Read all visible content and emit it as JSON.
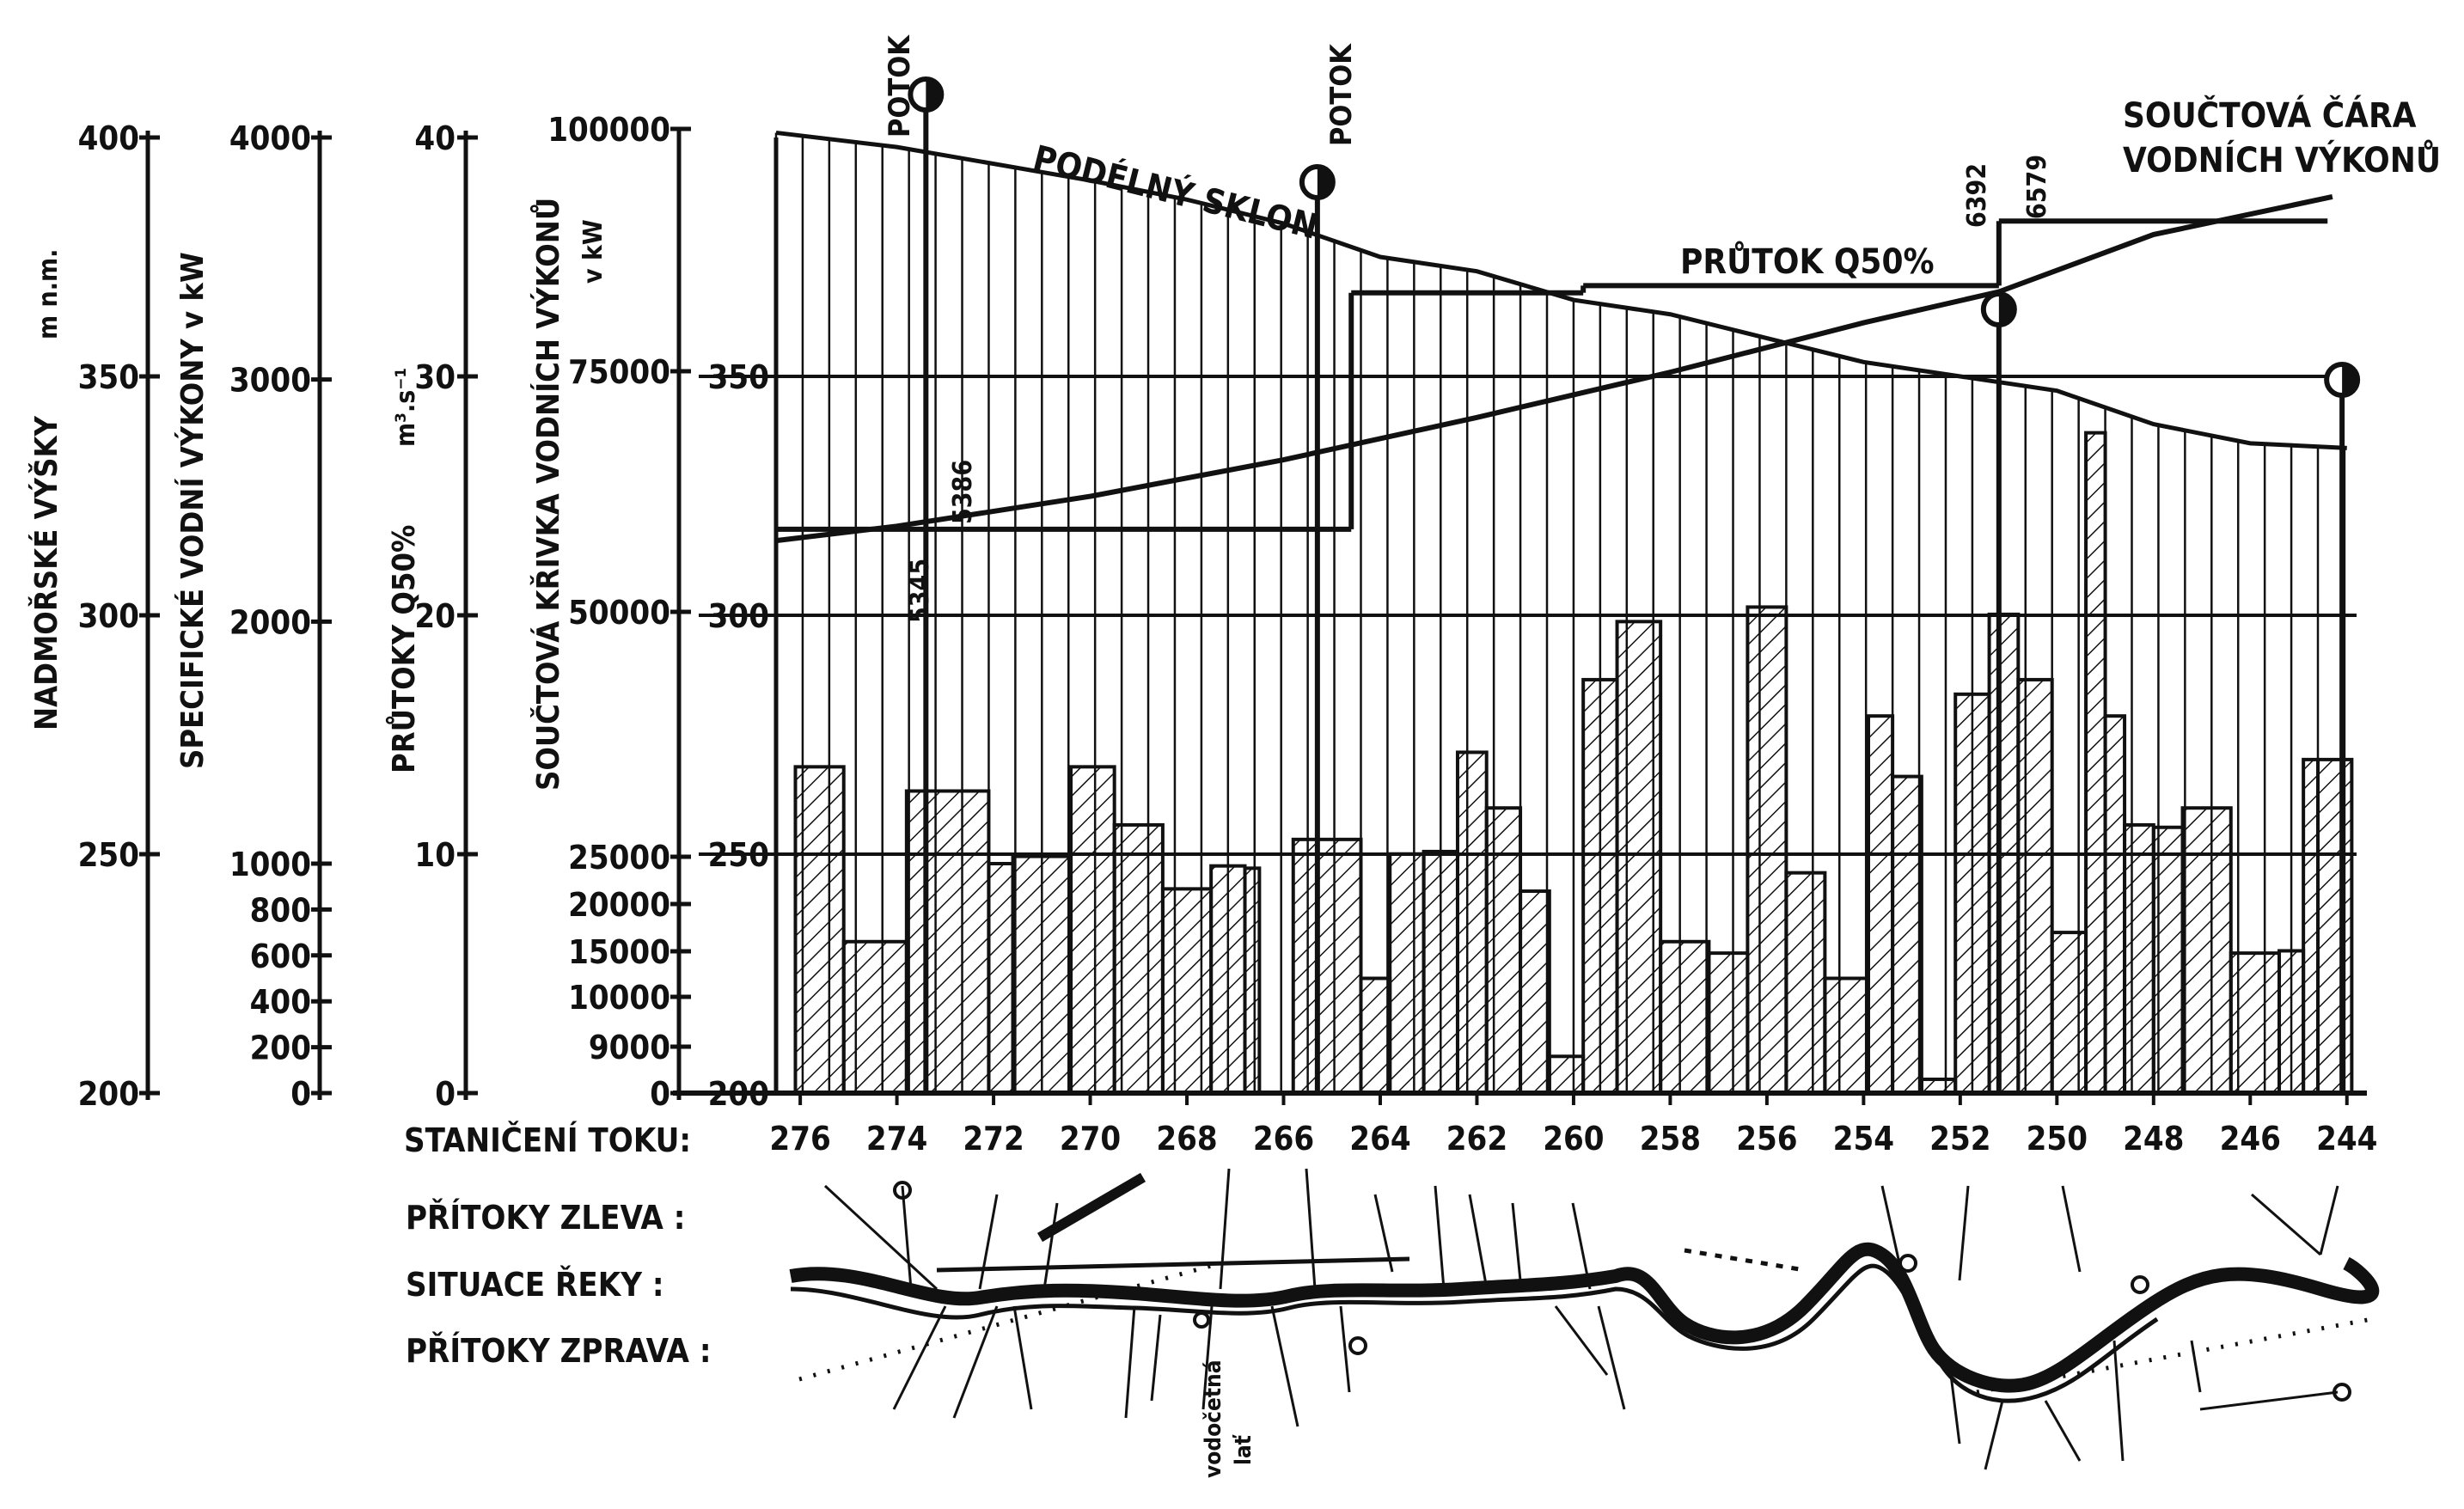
{
  "chart_data": {
    "type": "bar",
    "title": "",
    "axes": [
      {
        "label": "NADMOŘSKÉ VÝŠKY",
        "unit": "m n.m.",
        "ticks": [
          "200",
          "250",
          "300",
          "350",
          "400"
        ]
      },
      {
        "label": "SPECIFICKÉ VODNÍ VÝKONY v kW",
        "ticks": [
          "0",
          "200",
          "400",
          "600",
          "800",
          "1000",
          "2000",
          "3000",
          "4000"
        ]
      },
      {
        "label": "PRŮTOKY Q50%",
        "unit": "m³.s⁻¹",
        "ticks": [
          "0",
          "10",
          "20",
          "30",
          "40"
        ]
      },
      {
        "label": "SOUČTOVÁ KŘIVKA VODNÍCH VÝKONŮ",
        "unit": "v kW",
        "ticks": [
          "0",
          "9000",
          "10000",
          "15000",
          "20000",
          "25000",
          "50000",
          "75000",
          "100000"
        ]
      }
    ],
    "inner_elevation_ticks": [
      "200",
      "250",
      "300",
      "350"
    ],
    "x_label": "STANIČENÍ TOKU:",
    "x_ticks": [
      "276",
      "274",
      "272",
      "270",
      "268",
      "266",
      "264",
      "262",
      "260",
      "258",
      "256",
      "254",
      "252",
      "250",
      "248",
      "246",
      "244"
    ],
    "xlim": [
      276.5,
      243.8
    ],
    "annotations": {
      "slope": "PODÉLNÝ SKLON",
      "flow": "PRŮTOK Q50%",
      "cumulative": [
        "SOUČTOVÁ ČÁRA",
        "VODNÍCH VÝKONŮ"
      ],
      "tributary_a": "POTOK",
      "tributary_b": "POTOK",
      "v1": "5345",
      "v2": "5386",
      "v3": "6392",
      "v4": "6579",
      "gauge": [
        "vodočetná",
        "lať"
      ]
    },
    "specific_power_bars": {
      "unit": "kW",
      "x_start": [
        276.1,
        275.1,
        273.8,
        272.1,
        271.6,
        270.4,
        269.5,
        268.5,
        267.5,
        266.8,
        265.8,
        264.4,
        263.8,
        263.1,
        262.4,
        261.8,
        261.1,
        260.5,
        259.8,
        259.1,
        258.2,
        257.2,
        256.4,
        255.6,
        254.8,
        253.9,
        253.4,
        252.8,
        252.1,
        251.4,
        250.8,
        250.1,
        249.4,
        249.0,
        248.6,
        248.0,
        247.4,
        246.4,
        245.4,
        244.9,
        244.6
      ],
      "x_end": [
        275.1,
        273.8,
        272.1,
        271.6,
        270.4,
        269.5,
        268.5,
        267.5,
        266.8,
        266.5,
        264.4,
        263.8,
        263.1,
        262.4,
        261.8,
        261.1,
        260.5,
        259.8,
        259.1,
        258.2,
        257.2,
        256.4,
        255.6,
        254.8,
        253.9,
        253.4,
        252.8,
        252.1,
        251.4,
        250.8,
        250.1,
        249.4,
        249.0,
        248.6,
        248.0,
        247.4,
        246.4,
        245.4,
        244.9,
        244.6,
        243.9
      ],
      "values": [
        1400,
        660,
        1300,
        1000,
        1030,
        1400,
        1160,
        890,
        990,
        980,
        1100,
        500,
        1040,
        1050,
        1460,
        1230,
        880,
        160,
        1760,
        2000,
        660,
        610,
        2060,
        960,
        500,
        1610,
        1360,
        60,
        1700,
        2030,
        1760,
        700,
        2780,
        1610,
        1160,
        1150,
        1230,
        610,
        620,
        1430,
        1430
      ]
    },
    "elevation_profile": {
      "unit": "m n.m.",
      "x": [
        276.5,
        274.0,
        270.0,
        268.0,
        266.0,
        264.0,
        262.0,
        260.0,
        258.0,
        256.0,
        254.0,
        252.0,
        250.0,
        248.0,
        246.0,
        244.0
      ],
      "y": [
        401,
        398,
        391,
        387,
        382,
        375,
        372,
        366,
        363,
        358,
        353,
        350,
        347,
        340,
        336,
        335
      ]
    },
    "flow_q50": {
      "unit": "m3.s-1",
      "segments": [
        {
          "x": [
            276.5,
            264.6
          ],
          "y": [
            23.6,
            23.6
          ]
        },
        {
          "x": [
            264.6,
            259.8
          ],
          "y": [
            33.5,
            33.5
          ]
        },
        {
          "x": [
            259.8,
            251.2
          ],
          "y": [
            33.8,
            33.8
          ]
        },
        {
          "x": [
            251.2,
            244.4
          ],
          "y": [
            36.5,
            36.5
          ]
        }
      ]
    },
    "cumulative_power": {
      "unit": "kW",
      "x": [
        276.5,
        274.0,
        270.0,
        266.0,
        262.0,
        258.0,
        254.0,
        251.2,
        248.0,
        244.3
      ],
      "y": [
        57400,
        58900,
        62000,
        65800,
        70200,
        74900,
        80000,
        83200,
        89100,
        93000
      ]
    },
    "markers": [
      273.4,
      265.3,
      251.2,
      244.1
    ]
  },
  "labels": {
    "tributaries_left": "PŘÍTOKY ZLEVA :",
    "river_situation": "SITUACE ŘEKY :",
    "tributaries_right": "PŘÍTOKY ZPRAVA :"
  }
}
